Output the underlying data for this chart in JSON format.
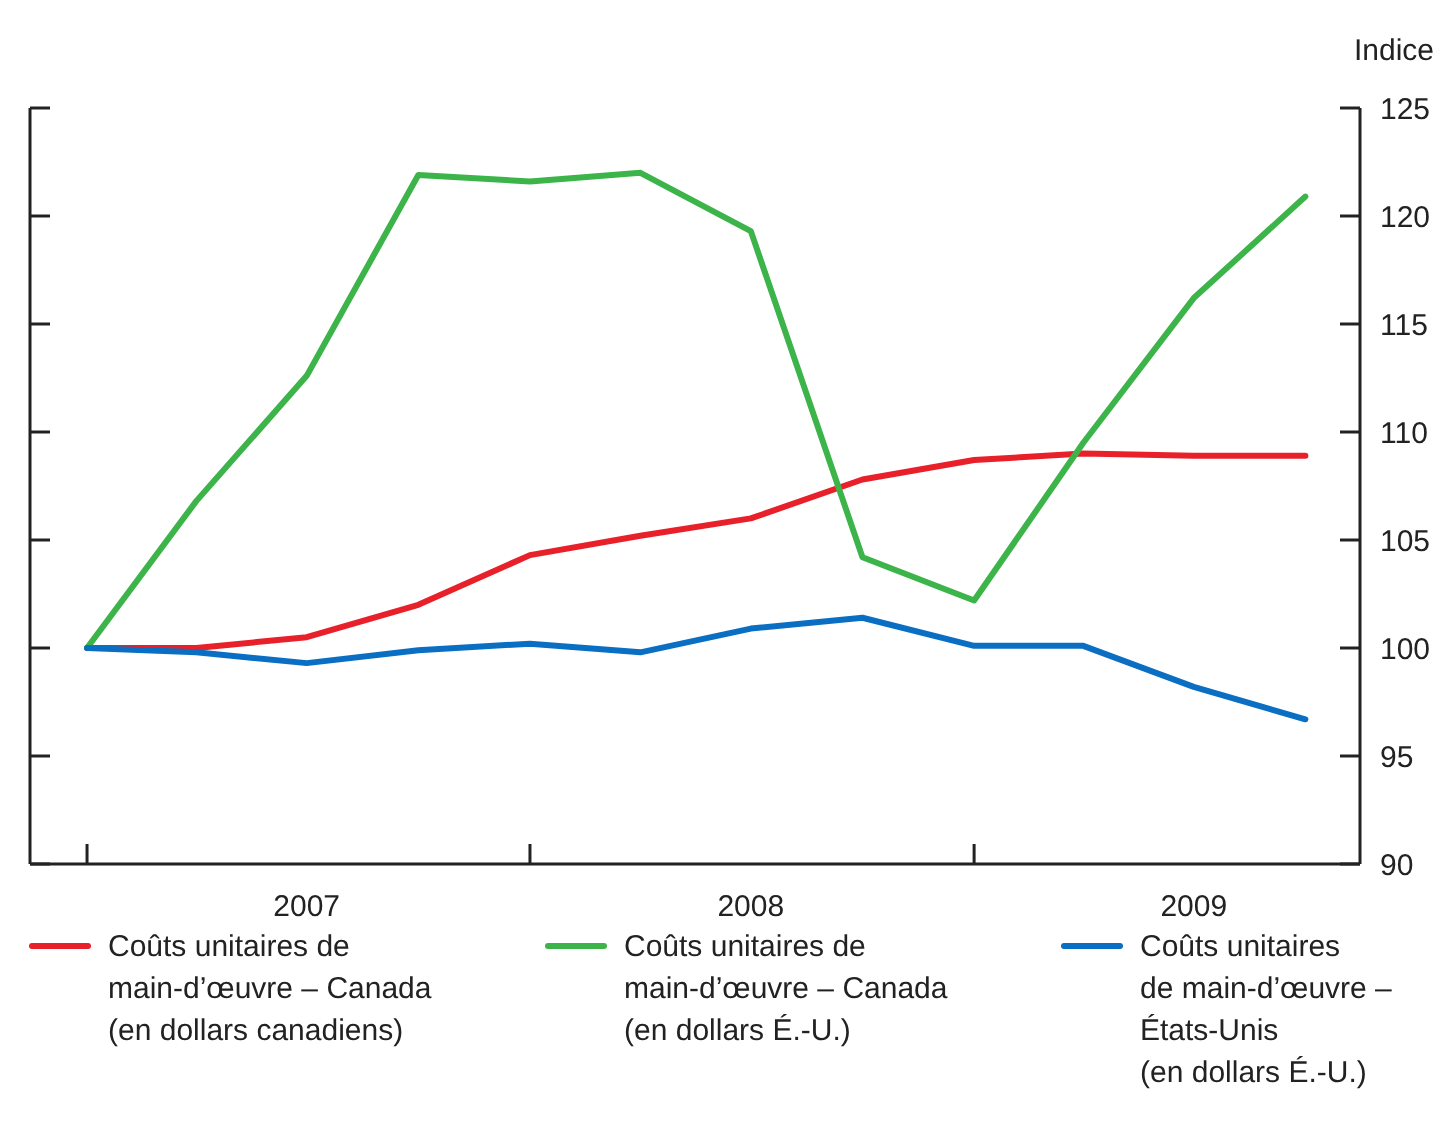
{
  "chart_data": {
    "type": "line",
    "ylabel": "Indice",
    "x": [
      "2007-01-01",
      "2007-04-01",
      "2007-07-01",
      "2007-10-01",
      "2008-01-01",
      "2008-04-01",
      "2008-07-01",
      "2008-10-01",
      "2009-01-01",
      "2009-04-01",
      "2009-07-01",
      "2009-10-01"
    ],
    "xlim": [
      "2006-11-15",
      "2009-11-15"
    ],
    "xticks": [
      {
        "value": "2007-01-01",
        "label": null
      },
      {
        "value": "2008-01-01",
        "label": null
      },
      {
        "value": "2009-01-01",
        "label": null
      },
      {
        "value": "2007-07-01",
        "label": "2007"
      },
      {
        "value": "2008-07-01",
        "label": "2008"
      },
      {
        "value": "2009-07-01",
        "label": "2009"
      }
    ],
    "ylim": [
      90,
      125
    ],
    "yticks": [
      90,
      95,
      100,
      105,
      110,
      115,
      120,
      125
    ],
    "grid": false,
    "legend": "bottom",
    "line_style": "solid",
    "marker": "none",
    "series": [
      {
        "name": "Coûts unitaires de\nmain-d’œuvre – Canada\n(en dollars canadiens)",
        "color": "#e8202a",
        "values": [
          100,
          100,
          100.5,
          102,
          104.3,
          105.2,
          106,
          107.8,
          108.7,
          109,
          108.9,
          108.9
        ]
      },
      {
        "name": "Coûts unitaires de\nmain-d’œuvre – Canada\n(en dollars É.-U.)",
        "color": "#3cb44a",
        "values": [
          100,
          106.8,
          112.6,
          121.9,
          121.6,
          122,
          119.3,
          104.2,
          102.2,
          109.5,
          116.2,
          120.9
        ]
      },
      {
        "name": "Coûts unitaires\nde main-d’œuvre –\nÉtats-Unis\n(en dollars É.-U.)",
        "color": "#0a6fc2",
        "values": [
          100,
          99.8,
          99.3,
          99.9,
          100.2,
          99.8,
          100.9,
          101.4,
          100.1,
          100.1,
          98.2,
          96.7
        ]
      }
    ]
  }
}
